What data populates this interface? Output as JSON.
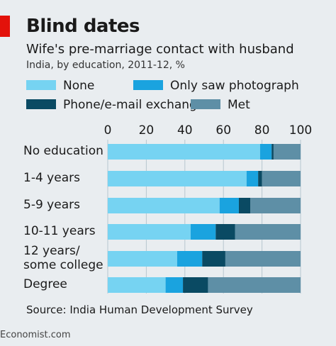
{
  "header": {
    "title": "Blind dates",
    "subtitle": "Wife's pre-marriage contact with husband",
    "meta": "India, by education, 2011-12, %"
  },
  "colors": {
    "accent_red": "#e3120b",
    "none": "#76d3f2",
    "photo": "#1aa3df",
    "phone": "#0a4a63",
    "met": "#5e8fa6",
    "grid": "#b8c7cf"
  },
  "legend": [
    {
      "label": "None",
      "color": "#76d3f2"
    },
    {
      "label": "Only saw photograph",
      "color": "#1aa3df"
    },
    {
      "label": "Phone/e-mail exchange",
      "color": "#0a4a63"
    },
    {
      "label": "Met",
      "color": "#5e8fa6"
    }
  ],
  "footer": {
    "source": "Source: India Human Development Survey",
    "brand": "Economist.com"
  },
  "chart_data": {
    "type": "bar",
    "orientation": "horizontal",
    "stacked": true,
    "categories": [
      "No education",
      "1-4 years",
      "5-9 years",
      "10-11 years",
      "12 years/\nsome college",
      "Degree"
    ],
    "xlim": [
      0,
      100
    ],
    "xticks": [
      "0",
      "20",
      "40",
      "60",
      "80",
      "100"
    ],
    "grid": true,
    "legend_position": "top",
    "series": [
      {
        "name": "None",
        "values": [
          79,
          72,
          58,
          43,
          36,
          30
        ]
      },
      {
        "name": "Only saw photograph",
        "values": [
          6,
          6,
          10,
          13,
          13,
          9
        ]
      },
      {
        "name": "Phone/e-mail exchange",
        "values": [
          1,
          2,
          6,
          10,
          12,
          13
        ]
      },
      {
        "name": "Met",
        "values": [
          14,
          20,
          26,
          34,
          39,
          48
        ]
      }
    ]
  }
}
